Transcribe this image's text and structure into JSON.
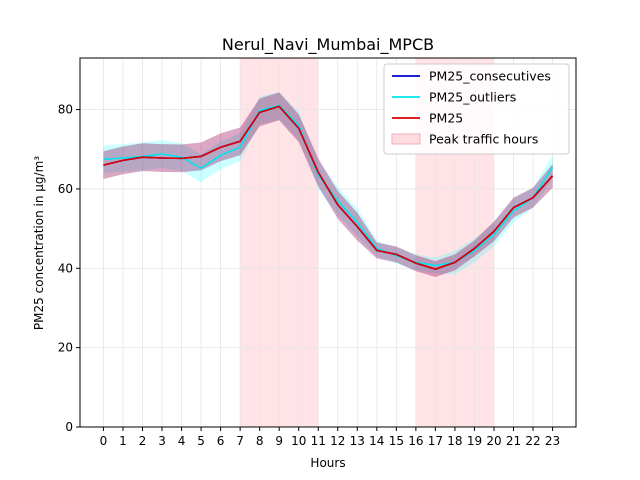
{
  "chart_data": {
    "type": "line",
    "title": "Nerul_Navi_Mumbai_MPCB",
    "xlabel": "Hours",
    "ylabel": "PM25 concentration in µg/m³",
    "x": [
      0,
      1,
      2,
      3,
      4,
      5,
      6,
      7,
      8,
      9,
      10,
      11,
      12,
      13,
      14,
      15,
      16,
      17,
      18,
      19,
      20,
      21,
      22,
      23
    ],
    "xlim": [
      -1.2,
      24.2
    ],
    "ylim": [
      0,
      93
    ],
    "yticks": [
      0,
      20,
      40,
      60,
      80
    ],
    "grid": true,
    "legend_position": "upper-right",
    "series": [
      {
        "name": "PM25_consecutives",
        "color": "#0000cc",
        "band_color": "#0000cc",
        "values": [
          66,
          67.2,
          68,
          67.8,
          67.7,
          68.2,
          70.5,
          72,
          79.3,
          80.8,
          75.3,
          64.2,
          56,
          50.5,
          44.5,
          43.5,
          41.3,
          39.8,
          41.5,
          45,
          49.3,
          55.3,
          57.8,
          63.3
        ],
        "lower": [
          62.5,
          63.7,
          64.5,
          64.3,
          64.2,
          64.7,
          67,
          68.5,
          75.8,
          77.3,
          71.8,
          60.7,
          52.5,
          47,
          42.5,
          41.5,
          39.3,
          37.8,
          39.5,
          43,
          46.8,
          52.8,
          55.3,
          60.3
        ],
        "upper": [
          69.5,
          70.7,
          71.5,
          71.3,
          71.2,
          71.7,
          74,
          75.5,
          82.8,
          84.3,
          78.8,
          67.7,
          59.5,
          54,
          46.5,
          45.5,
          43.3,
          41.8,
          43.5,
          47,
          51.8,
          57.8,
          60.3,
          66.3
        ]
      },
      {
        "name": "PM25_outliers",
        "color": "#00e5ee",
        "band_color": "#00ffff",
        "values": [
          67.5,
          67.8,
          68.2,
          68.8,
          68,
          65.2,
          68.5,
          70.5,
          79.8,
          81,
          76,
          63.5,
          57,
          51.5,
          45,
          43.2,
          41.5,
          40.7,
          41.5,
          44.5,
          48.5,
          54.5,
          57.8,
          65.5
        ],
        "lower": [
          64,
          64.3,
          64.7,
          65.3,
          64.5,
          61.7,
          65,
          67,
          76.3,
          77.5,
          72.5,
          60,
          53.5,
          48,
          43,
          41.2,
          39.5,
          38.7,
          38.5,
          41.5,
          45.5,
          51.5,
          55.3,
          62.5
        ],
        "upper": [
          71,
          71.3,
          71.7,
          72.3,
          71.5,
          68.7,
          72,
          74,
          83.3,
          84.5,
          79.5,
          67,
          60.5,
          55,
          47,
          45.2,
          43.5,
          42.7,
          44.5,
          47.5,
          51.5,
          57.5,
          60.3,
          68.5
        ]
      },
      {
        "name": "PM25",
        "color": "#dd0000",
        "band_color": "#ff0000",
        "values": [
          66,
          67.2,
          68,
          67.8,
          67.7,
          68.2,
          70.5,
          72,
          79.3,
          80.8,
          75.3,
          64.2,
          56,
          50.5,
          44.5,
          43.5,
          41.3,
          39.8,
          41.5,
          45,
          49.3,
          55.3,
          57.8,
          63.3
        ],
        "lower": [
          62.5,
          63.7,
          64.5,
          64.3,
          64.2,
          64.7,
          67,
          68.5,
          75.8,
          77.3,
          71.8,
          60.7,
          52.5,
          47,
          42.5,
          41.5,
          39.3,
          37.8,
          39.5,
          43,
          46.8,
          52.8,
          55.3,
          60.3
        ],
        "upper": [
          69.5,
          70.7,
          71.5,
          71.3,
          71.2,
          71.7,
          74,
          75.5,
          82.8,
          84.3,
          78.8,
          67.7,
          59.5,
          54,
          46.5,
          45.5,
          43.3,
          41.8,
          43.5,
          47,
          51.8,
          57.8,
          60.3,
          66.3
        ]
      }
    ],
    "shaded_regions": {
      "name": "Peak traffic hours",
      "color": "#ffc0c8",
      "ranges": [
        [
          7,
          11
        ],
        [
          16,
          20
        ]
      ]
    }
  }
}
